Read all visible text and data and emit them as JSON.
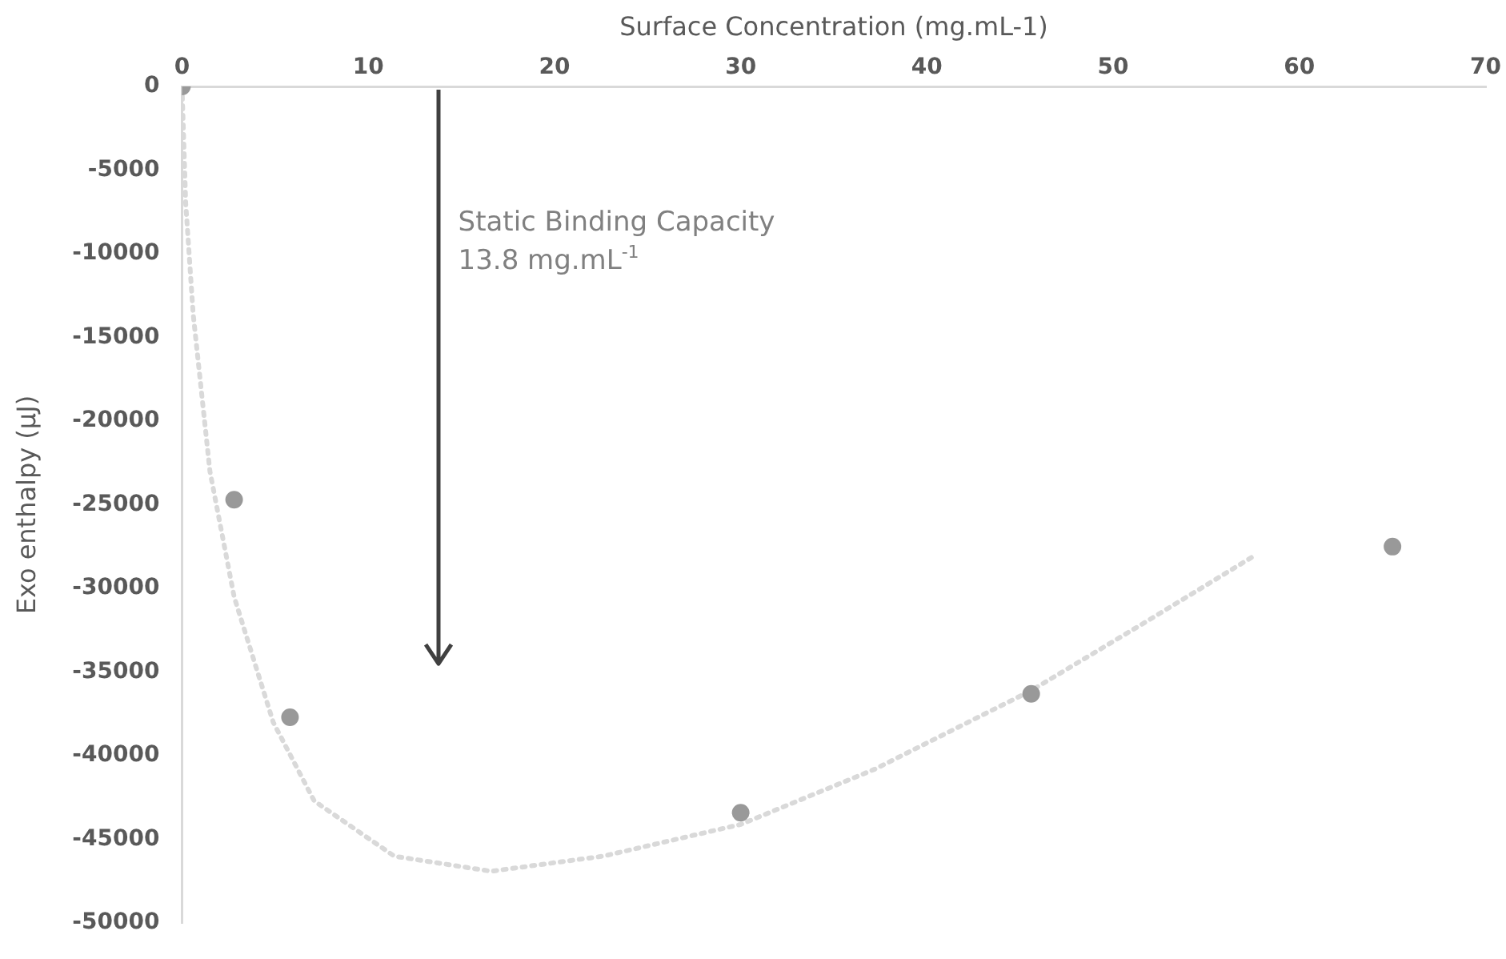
{
  "chart_data": {
    "type": "scatter",
    "xlabel": "Surface Concentration (mg.mL-1)",
    "ylabel": "Exo enthalpy (µJ)",
    "xlim": [
      0,
      70
    ],
    "xticks": [
      0,
      10,
      20,
      30,
      40,
      50,
      60,
      70
    ],
    "ylim": [
      -50000,
      0
    ],
    "yticks": [
      -50000,
      -45000,
      -40000,
      -35000,
      -30000,
      -25000,
      -20000,
      -15000,
      -10000,
      -5000,
      0
    ],
    "grid": false,
    "legend": false,
    "marker": "circle",
    "series": [
      {
        "type": "scatter",
        "color": "#999999",
        "x": [
          0,
          2.8,
          5.8,
          30,
          45.6,
          65
        ],
        "values": [
          0,
          -24700,
          -37700,
          -43400,
          -36300,
          -27500
        ]
      },
      {
        "type": "line",
        "color": "#d9d9d9",
        "line_style": "dotted",
        "marker": "none",
        "x": [
          0,
          0.2,
          0.6,
          1.5,
          2.8,
          4.9,
          7.1,
          11.4,
          16.6,
          22.6,
          30,
          37.2,
          45.6,
          51.9,
          57.5
        ],
        "values": [
          0,
          -7000,
          -13600,
          -23000,
          -30500,
          -38000,
          -42700,
          -46000,
          -46900,
          -46000,
          -44100,
          -40800,
          -36100,
          -31900,
          -28100
        ]
      }
    ],
    "ref_lines": [
      {
        "axis": "x",
        "value": 13.8,
        "label": "Static Binding Capacity\n13.8 mg.mL$^{-1}$",
        "color": "#404040"
      }
    ]
  }
}
